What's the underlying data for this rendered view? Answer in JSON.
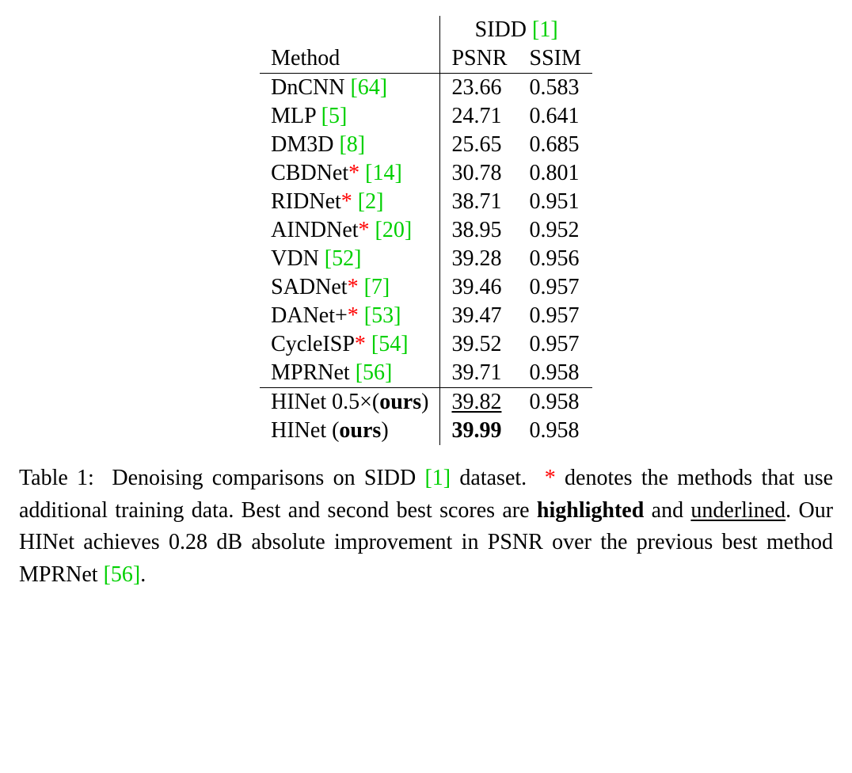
{
  "table": {
    "header": {
      "method_label": "Method",
      "group_label": "SIDD",
      "group_cite": "[1]",
      "metric1": "PSNR",
      "metric2": "SSIM"
    },
    "rows": [
      {
        "name": "DnCNN",
        "cite": "[64]",
        "star": false,
        "psnr": "23.66",
        "ssim": "0.583"
      },
      {
        "name": "MLP",
        "cite": "[5]",
        "star": false,
        "psnr": "24.71",
        "ssim": "0.641"
      },
      {
        "name": "DM3D",
        "cite": "[8]",
        "star": false,
        "psnr": "25.65",
        "ssim": "0.685"
      },
      {
        "name": "CBDNet",
        "cite": "[14]",
        "star": true,
        "psnr": "30.78",
        "ssim": "0.801"
      },
      {
        "name": "RIDNet",
        "cite": "[2]",
        "star": true,
        "psnr": "38.71",
        "ssim": "0.951"
      },
      {
        "name": "AINDNet",
        "cite": "[20]",
        "star": true,
        "psnr": "38.95",
        "ssim": "0.952"
      },
      {
        "name": "VDN",
        "cite": "[52]",
        "star": false,
        "psnr": "39.28",
        "ssim": "0.956"
      },
      {
        "name": "SADNet",
        "cite": "[7]",
        "star": true,
        "psnr": "39.46",
        "ssim": "0.957"
      },
      {
        "name": "DANet+",
        "cite": "[53]",
        "star": true,
        "psnr": "39.47",
        "ssim": "0.957"
      },
      {
        "name": "CycleISP",
        "cite": "[54]",
        "star": true,
        "psnr": "39.52",
        "ssim": "0.957"
      },
      {
        "name": "MPRNet",
        "cite": "[56]",
        "star": false,
        "psnr": "39.71",
        "ssim": "0.958"
      }
    ],
    "ours1": {
      "name_pre": "HINet 0.5×(",
      "name_bold": "ours",
      "name_post": ")",
      "psnr": "39.82",
      "psnr_style": "underline",
      "ssim": "0.958"
    },
    "ours2": {
      "name_pre": "HINet (",
      "name_bold": "ours",
      "name_post": ")",
      "psnr": "39.99",
      "psnr_style": "bold",
      "ssim": "0.958"
    }
  },
  "caption": {
    "label": "Table 1:",
    "part1": "Denoising comparisons on SIDD",
    "cite1": "[1]",
    "part2": "dataset.",
    "star": "*",
    "part3": "denotes the methods that use additional training data. Best and second best scores are",
    "bold_word": "highlighted",
    "part4": "and",
    "ul_word": "underlined",
    "part5": ". Our HINet achieves 0.28 dB absolute improvement in PSNR over the previous best method MPRNet",
    "cite2": "[56]",
    "part6": "."
  },
  "colors": {
    "cite": "#00d000",
    "star": "#ff0000",
    "text": "#000000",
    "background": "#ffffff"
  }
}
